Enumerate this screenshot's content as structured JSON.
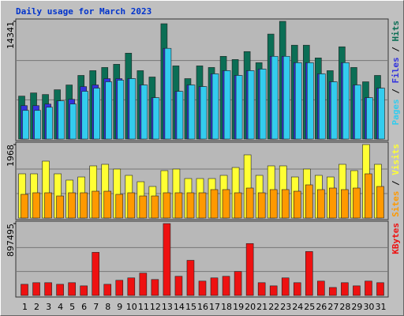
{
  "chart_data": [
    {
      "type": "bar",
      "title": "Daily usage for March 2023",
      "ylim": [
        0,
        14341
      ],
      "yticks": [
        14341
      ],
      "legend_separator": " / ",
      "series": [
        {
          "name": "Pages",
          "color": "#33ccee",
          "values": [
            3488,
            3488,
            3876,
            4651,
            4264,
            5814,
            6202,
            6977,
            7171,
            7364,
            6589,
            5039,
            11047,
            5814,
            6589,
            6395,
            7946,
            8333,
            7752,
            8333,
            8527,
            10078,
            10078,
            9302,
            9302,
            7946,
            6977,
            9302,
            6589,
            5039,
            6202
          ]
        },
        {
          "name": "Files",
          "color": "#3333dd",
          "values": [
            4070,
            4070,
            4260,
            4650,
            4840,
            6390,
            6590,
            7360,
            7360,
            7364,
            6589,
            5039,
            11047,
            5814,
            6589,
            6395,
            7946,
            8333,
            7752,
            8333,
            8527,
            10078,
            10078,
            9302,
            9302,
            7946,
            6977,
            9302,
            6589,
            5039,
            6202
          ]
        },
        {
          "name": "Hits",
          "color": "#0b6e55",
          "values": [
            5233,
            5620,
            5426,
            6008,
            6589,
            7752,
            8333,
            8721,
            9109,
            10465,
            8333,
            7558,
            14050,
            8915,
            7364,
            8915,
            8721,
            10078,
            9690,
            10659,
            9302,
            12791,
            14341,
            11434,
            11434,
            9884,
            8333,
            11240,
            8721,
            6977,
            7752
          ]
        }
      ]
    },
    {
      "type": "bar",
      "ylim": [
        0,
        1968
      ],
      "yticks": [
        1968
      ],
      "legend_separator": " / ",
      "series": [
        {
          "name": "Sites",
          "color": "#ff9900",
          "values": [
            635,
            677,
            677,
            592,
            677,
            677,
            719,
            719,
            635,
            677,
            592,
            592,
            677,
            677,
            677,
            677,
            762,
            762,
            677,
            804,
            677,
            762,
            762,
            719,
            889,
            762,
            804,
            762,
            804,
            1185,
            846
          ]
        },
        {
          "name": "Visits",
          "color": "#ffff33",
          "values": [
            1185,
            1185,
            1524,
            1185,
            1016,
            1100,
            1397,
            1439,
            1312,
            1143,
            973,
            846,
            1270,
            1312,
            1058,
            1058,
            1058,
            1143,
            1354,
            1693,
            1143,
            1397,
            1397,
            1100,
            1312,
            1143,
            1100,
            1439,
            1270,
            1968,
            1439
          ]
        }
      ]
    },
    {
      "type": "bar",
      "ylim": [
        0,
        897495
      ],
      "yticks": [
        897495
      ],
      "categories": [
        "1",
        "2",
        "3",
        "4",
        "5",
        "6",
        "7",
        "8",
        "9",
        "10",
        "11",
        "12",
        "13",
        "14",
        "15",
        "16",
        "17",
        "18",
        "19",
        "20",
        "21",
        "22",
        "23",
        "24",
        "25",
        "26",
        "27",
        "28",
        "29",
        "30",
        "31"
      ],
      "category_colors": [
        "#000",
        "#000",
        "#000",
        "#2e8b57",
        "#2e8b57",
        "#000",
        "#000",
        "#000",
        "#000",
        "#000",
        "#2e8b57",
        "#2e8b57",
        "#000",
        "#000",
        "#000",
        "#000",
        "#000",
        "#2e8b57",
        "#2e8b57",
        "#000",
        "#000",
        "#000",
        "#000",
        "#000",
        "#2e8b57",
        "#2e8b57",
        "#000",
        "#000",
        "#000",
        "#000",
        "#000"
      ],
      "series": [
        {
          "name": "KBytes",
          "color": "#ee1111",
          "values": [
            139600,
            159600,
            159600,
            139600,
            159600,
            119700,
            538500,
            139600,
            189500,
            219400,
            279200,
            199400,
            897495,
            239300,
            438800,
            179500,
            219400,
            239300,
            299200,
            648200,
            159600,
            119700,
            219400,
            159600,
            548500,
            179500,
            99700,
            159600,
            119700,
            179500,
            159600
          ]
        }
      ]
    }
  ]
}
